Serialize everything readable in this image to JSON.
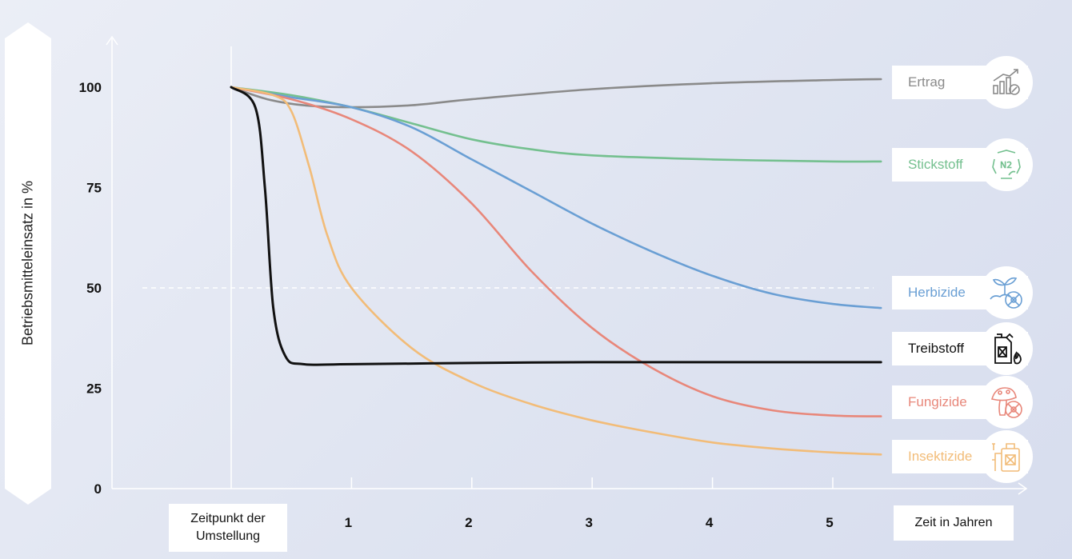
{
  "chart_data": {
    "type": "line",
    "ylabel": "Betriebsmitteleinsatz in %",
    "xlabel": "Zeit in Jahren",
    "x_start_label": [
      "Zeitpunkt der",
      "Umstellung"
    ],
    "y_ticks": [
      0,
      25,
      50,
      75,
      100
    ],
    "x_ticks": [
      1,
      2,
      3,
      4,
      5
    ],
    "ylim": [
      0,
      110
    ],
    "xlim": [
      -1,
      5.5
    ],
    "reference_line": 50,
    "series": [
      {
        "name": "Ertrag",
        "color": "#8a8a8a",
        "icon": "yield-chart-icon",
        "x": [
          0,
          0.3,
          0.6,
          1.0,
          1.5,
          2.0,
          3.0,
          4.0,
          5.0,
          5.4
        ],
        "y": [
          100,
          97,
          95.5,
          95,
          95.5,
          97,
          99.5,
          101,
          101.8,
          102
        ]
      },
      {
        "name": "Stickstoff",
        "color": "#74c08f",
        "icon": "nitrogen-icon",
        "x": [
          0,
          0.5,
          1.0,
          1.5,
          2.0,
          2.5,
          3.0,
          4.0,
          5.0,
          5.4
        ],
        "y": [
          100,
          98,
          95,
          91,
          87,
          84.5,
          83,
          82,
          81.5,
          81.5
        ]
      },
      {
        "name": "Herbizide",
        "color": "#6a9fd4",
        "icon": "herbicide-plant-icon",
        "x": [
          0,
          0.5,
          1.0,
          1.5,
          2.0,
          2.5,
          3.0,
          3.5,
          4.0,
          4.5,
          5.0,
          5.4
        ],
        "y": [
          100,
          97.5,
          95,
          90,
          82,
          74,
          66,
          59,
          53,
          48.5,
          46,
          45
        ]
      },
      {
        "name": "Treibstoff",
        "color": "#111111",
        "icon": "fuel-canister-icon",
        "x": [
          0,
          0.2,
          0.28,
          0.35,
          0.45,
          0.6,
          1.0,
          2.0,
          3.0,
          4.0,
          5.0,
          5.4
        ],
        "y": [
          100,
          95,
          75,
          45,
          33,
          31,
          31,
          31.3,
          31.5,
          31.5,
          31.5,
          31.5
        ]
      },
      {
        "name": "Fungizide",
        "color": "#e8877a",
        "icon": "mushroom-icon",
        "x": [
          0,
          0.5,
          1.0,
          1.5,
          2.0,
          2.5,
          3.0,
          3.5,
          4.0,
          4.5,
          5.0,
          5.4
        ],
        "y": [
          100,
          97,
          92,
          84,
          71,
          54,
          40,
          30,
          23,
          19.5,
          18.2,
          18
        ]
      },
      {
        "name": "Insektizide",
        "color": "#f2bc78",
        "icon": "insecticide-sprayer-icon",
        "x": [
          0,
          0.35,
          0.5,
          0.65,
          0.8,
          1.0,
          1.5,
          2.0,
          2.5,
          3.0,
          3.5,
          4.0,
          4.5,
          5.0,
          5.4
        ],
        "y": [
          100,
          98,
          94,
          80,
          63,
          50,
          35,
          26.5,
          21,
          17,
          14,
          11.5,
          10,
          9,
          8.5
        ]
      }
    ],
    "grid": false,
    "legend": "right"
  }
}
